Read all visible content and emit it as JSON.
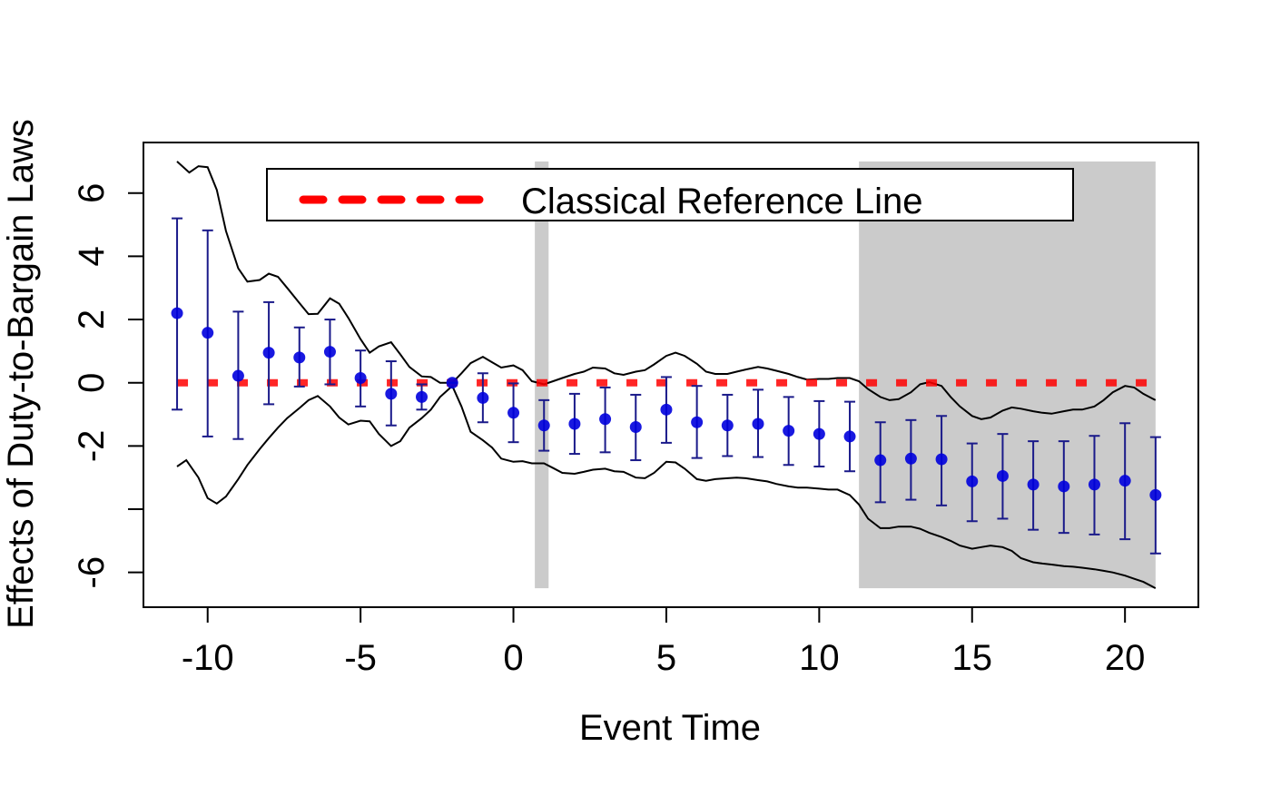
{
  "chart_data": {
    "type": "scatter",
    "title": "",
    "xlabel": "Event Time",
    "ylabel": "Effects of Duty-to-Bargain Laws",
    "xlim": [
      -12.1,
      22.4
    ],
    "ylim": [
      -7.1,
      7.6
    ],
    "xticks": [
      -10,
      -5,
      0,
      5,
      10,
      15,
      20
    ],
    "yticks": [
      6,
      4,
      2,
      0,
      -2,
      -4,
      -6
    ],
    "ytick_labels": [
      "6",
      "4",
      "2",
      "0",
      "-2",
      "",
      "-6"
    ],
    "legend": {
      "position": "top",
      "entries": [
        {
          "label": "Classical Reference Line",
          "color": "#ff0000",
          "style": "dashed"
        }
      ]
    },
    "shaded_regions": [
      {
        "x_start": 0.7,
        "x_end": 1.15,
        "y_start": -6.5,
        "y_end": 7.0,
        "color": "#bebebe"
      },
      {
        "x_start": 11.3,
        "x_end": 21.0,
        "y_start": -6.5,
        "y_end": 7.0,
        "color": "#bebebe"
      }
    ],
    "reference_line": {
      "y": 0,
      "x_start": -11,
      "x_end": 21,
      "color": "#ff0000"
    },
    "point_estimates": {
      "color": "#0000dd",
      "errorbar_color": "#1a1a8a",
      "x": [
        -11,
        -10,
        -9,
        -8,
        -7,
        -6,
        -5,
        -4,
        -3,
        -2,
        -1,
        0,
        1,
        2,
        3,
        4,
        5,
        6,
        7,
        8,
        9,
        10,
        11,
        12,
        13,
        14,
        15,
        16,
        17,
        18,
        19,
        20,
        21
      ],
      "y": [
        2.2,
        1.58,
        0.22,
        0.95,
        0.8,
        0.98,
        0.15,
        -0.35,
        -0.45,
        0,
        -0.48,
        -0.95,
        -1.35,
        -1.3,
        -1.15,
        -1.4,
        -0.85,
        -1.25,
        -1.35,
        -1.3,
        -1.52,
        -1.62,
        -1.7,
        -2.45,
        -2.4,
        -2.42,
        -3.12,
        -2.95,
        -3.22,
        -3.28,
        -3.22,
        -3.1,
        -3.55
      ],
      "lower": [
        -0.85,
        -1.7,
        -1.78,
        -0.68,
        -0.12,
        -0.05,
        -0.75,
        -1.35,
        -0.85,
        0,
        -1.25,
        -1.88,
        -2.15,
        -2.25,
        -2.2,
        -2.45,
        -1.9,
        -2.38,
        -2.32,
        -2.35,
        -2.6,
        -2.65,
        -2.8,
        -3.78,
        -3.7,
        -3.88,
        -4.38,
        -4.3,
        -4.65,
        -4.75,
        -4.8,
        -4.95,
        -5.4
      ],
      "upper": [
        5.2,
        4.82,
        2.25,
        2.55,
        1.75,
        2.0,
        1.02,
        0.68,
        -0.05,
        0,
        0.3,
        -0.02,
        -0.55,
        -0.35,
        -0.15,
        -0.38,
        0.18,
        -0.1,
        -0.38,
        -0.22,
        -0.45,
        -0.58,
        -0.6,
        -1.25,
        -1.18,
        -1.05,
        -1.92,
        -1.62,
        -1.85,
        -1.85,
        -1.68,
        -1.28,
        -1.72
      ]
    },
    "band_upper": {
      "color": "#000000",
      "x": [
        -11,
        -10.6,
        -10.3,
        -10,
        -9.7,
        -9.4,
        -9,
        -8.7,
        -8.3,
        -8,
        -7.7,
        -7.4,
        -7,
        -6.7,
        -6.4,
        -6,
        -5.7,
        -5.4,
        -5,
        -4.7,
        -4.4,
        -4,
        -3.7,
        -3.4,
        -3,
        -2.7,
        -2.4,
        -2,
        -1.7,
        -1.4,
        -1,
        -0.7,
        -0.4,
        0,
        0.3,
        0.6,
        1,
        1.3,
        1.6,
        2,
        2.3,
        2.6,
        3,
        3.3,
        3.6,
        4,
        4.3,
        4.6,
        5,
        5.3,
        5.6,
        6,
        6.3,
        6.6,
        7,
        7.3,
        7.6,
        8,
        8.3,
        8.6,
        9,
        9.3,
        9.6,
        10,
        10.3,
        10.6,
        11,
        11.3,
        11.6,
        12,
        12.3,
        12.6,
        13,
        13.3,
        13.6,
        14,
        14.3,
        14.6,
        15,
        15.3,
        15.6,
        16,
        16.3,
        16.6,
        17,
        17.3,
        17.6,
        18,
        18.3,
        18.6,
        19,
        19.3,
        19.6,
        20,
        20.3,
        20.6,
        21
      ],
      "y": [
        7.0,
        6.65,
        6.85,
        6.82,
        6.1,
        4.8,
        3.62,
        3.2,
        3.25,
        3.45,
        3.35,
        3.0,
        2.52,
        2.17,
        2.18,
        2.67,
        2.5,
        2.05,
        1.38,
        0.95,
        1.15,
        1.28,
        0.9,
        0.5,
        0.2,
        0.18,
        0.0,
        0.0,
        0.3,
        0.62,
        0.82,
        0.65,
        0.48,
        0.55,
        0.4,
        0.05,
        -0.05,
        0.05,
        0.15,
        0.28,
        0.35,
        0.48,
        0.45,
        0.3,
        0.25,
        0.35,
        0.4,
        0.58,
        0.85,
        0.95,
        0.85,
        0.6,
        0.35,
        0.28,
        0.28,
        0.35,
        0.42,
        0.5,
        0.45,
        0.38,
        0.28,
        0.18,
        0.1,
        0.12,
        0.12,
        0.15,
        0.15,
        0.05,
        -0.2,
        -0.45,
        -0.55,
        -0.52,
        -0.3,
        -0.05,
        0.02,
        -0.1,
        -0.45,
        -0.75,
        -1.05,
        -1.15,
        -1.1,
        -0.88,
        -0.78,
        -0.82,
        -0.9,
        -0.95,
        -0.98,
        -0.9,
        -0.85,
        -0.85,
        -0.75,
        -0.55,
        -0.3,
        -0.1,
        -0.15,
        -0.35,
        -0.55
      ]
    },
    "band_lower": {
      "color": "#000000",
      "x": [
        -11,
        -10.7,
        -10.3,
        -10,
        -9.7,
        -9.4,
        -9,
        -8.7,
        -8.3,
        -8,
        -7.7,
        -7.4,
        -7,
        -6.7,
        -6.4,
        -6,
        -5.7,
        -5.4,
        -5,
        -4.7,
        -4.4,
        -4,
        -3.7,
        -3.4,
        -3,
        -2.7,
        -2.4,
        -2,
        -1.7,
        -1.4,
        -1,
        -0.7,
        -0.4,
        0,
        0.3,
        0.6,
        1,
        1.3,
        1.6,
        2,
        2.3,
        2.6,
        3,
        3.3,
        3.6,
        4,
        4.3,
        4.6,
        5,
        5.3,
        5.6,
        6,
        6.3,
        6.6,
        7,
        7.3,
        7.6,
        8,
        8.3,
        8.6,
        9,
        9.3,
        9.6,
        10,
        10.3,
        10.6,
        11,
        11.3,
        11.6,
        12,
        12.3,
        12.6,
        13,
        13.3,
        13.6,
        14,
        14.3,
        14.6,
        15,
        15.3,
        15.6,
        16,
        16.3,
        16.6,
        17,
        17.3,
        17.6,
        18,
        18.3,
        18.6,
        19,
        19.3,
        19.6,
        20,
        20.3,
        20.6,
        21
      ],
      "y": [
        -2.65,
        -2.45,
        -3.0,
        -3.65,
        -3.82,
        -3.6,
        -3.05,
        -2.6,
        -2.1,
        -1.75,
        -1.42,
        -1.12,
        -0.8,
        -0.55,
        -0.42,
        -0.75,
        -1.1,
        -1.32,
        -1.2,
        -1.22,
        -1.62,
        -2.0,
        -1.85,
        -1.42,
        -1.12,
        -0.85,
        -0.45,
        -0.1,
        -0.75,
        -1.55,
        -1.82,
        -2.05,
        -2.4,
        -2.5,
        -2.48,
        -2.55,
        -2.55,
        -2.7,
        -2.85,
        -2.88,
        -2.82,
        -2.75,
        -2.72,
        -2.8,
        -2.82,
        -3.0,
        -3.02,
        -2.85,
        -2.5,
        -2.52,
        -2.72,
        -3.05,
        -3.1,
        -3.05,
        -3.02,
        -3.0,
        -3.02,
        -3.08,
        -3.12,
        -3.2,
        -3.28,
        -3.32,
        -3.32,
        -3.35,
        -3.38,
        -3.38,
        -3.55,
        -3.85,
        -4.3,
        -4.6,
        -4.6,
        -4.55,
        -4.55,
        -4.62,
        -4.75,
        -4.88,
        -5.0,
        -5.15,
        -5.25,
        -5.2,
        -5.15,
        -5.2,
        -5.32,
        -5.55,
        -5.68,
        -5.72,
        -5.75,
        -5.8,
        -5.82,
        -5.85,
        -5.9,
        -5.95,
        -6.0,
        -6.1,
        -6.2,
        -6.3,
        -6.5
      ]
    }
  }
}
